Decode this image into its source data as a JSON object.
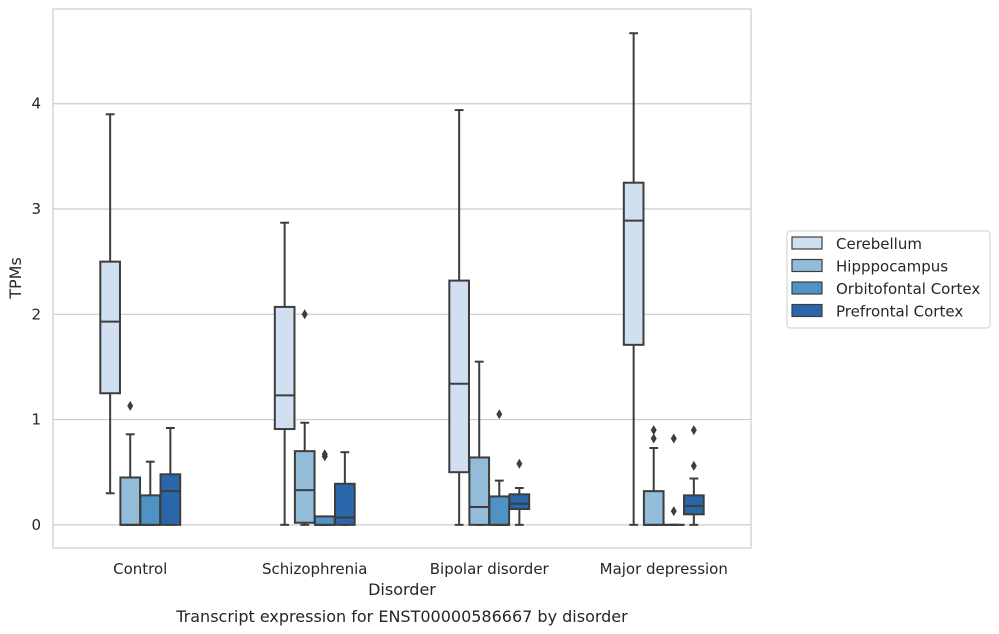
{
  "chart_data": {
    "type": "box",
    "caption": "Transcript expression for ENST00000586667 by disorder",
    "xlabel": "Disorder",
    "ylabel": "TPMs",
    "ylim": [
      -0.22,
      4.9
    ],
    "yticks": [
      0,
      1,
      2,
      3,
      4
    ],
    "grid": "horizontal",
    "legend_position": "right",
    "categories": [
      "Control",
      "Schizophrenia",
      "Bipolar disorder",
      "Major depression"
    ],
    "series": [
      {
        "name": "Cerebellum",
        "color": "#d1e0f0",
        "boxes": [
          {
            "whislo": 0.3,
            "q1": 1.25,
            "med": 1.93,
            "q3": 2.5,
            "whishi": 3.9,
            "fliers": []
          },
          {
            "whislo": 0.0,
            "q1": 0.91,
            "med": 1.23,
            "q3": 2.07,
            "whishi": 2.87,
            "fliers": []
          },
          {
            "whislo": 0.0,
            "q1": 0.5,
            "med": 1.34,
            "q3": 2.32,
            "whishi": 3.94,
            "fliers": []
          },
          {
            "whislo": 0.0,
            "q1": 1.71,
            "med": 2.89,
            "q3": 3.25,
            "whishi": 4.67,
            "fliers": []
          }
        ]
      },
      {
        "name": "Hipppocampus",
        "color": "#92bcd8",
        "boxes": [
          {
            "whislo": 0.0,
            "q1": 0.0,
            "med": 0.0,
            "q3": 0.45,
            "whishi": 0.86,
            "fliers": [
              1.13
            ]
          },
          {
            "whislo": 0.0,
            "q1": 0.02,
            "med": 0.33,
            "q3": 0.7,
            "whishi": 0.97,
            "fliers": [
              2.0
            ]
          },
          {
            "whislo": 0.0,
            "q1": 0.0,
            "med": 0.17,
            "q3": 0.64,
            "whishi": 1.55,
            "fliers": []
          },
          {
            "whislo": 0.0,
            "q1": 0.0,
            "med": 0.0,
            "q3": 0.32,
            "whishi": 0.73,
            "fliers": [
              0.82,
              0.9
            ]
          }
        ]
      },
      {
        "name": "Orbitofontal Cortex",
        "color": "#4f93c4",
        "boxes": [
          {
            "whislo": 0.0,
            "q1": 0.0,
            "med": 0.0,
            "q3": 0.28,
            "whishi": 0.6,
            "fliers": []
          },
          {
            "whislo": 0.0,
            "q1": 0.0,
            "med": 0.0,
            "q3": 0.08,
            "whishi": 0.08,
            "fliers": [
              0.65,
              0.67
            ]
          },
          {
            "whislo": 0.0,
            "q1": 0.0,
            "med": 0.0,
            "q3": 0.27,
            "whishi": 0.42,
            "fliers": [
              1.05
            ]
          },
          {
            "whislo": 0.0,
            "q1": 0.0,
            "med": 0.0,
            "q3": 0.0,
            "whishi": 0.0,
            "fliers": [
              0.13,
              0.82
            ]
          }
        ]
      },
      {
        "name": "Prefrontal Cortex",
        "color": "#2a67aa",
        "boxes": [
          {
            "whislo": 0.0,
            "q1": 0.0,
            "med": 0.32,
            "q3": 0.48,
            "whishi": 0.92,
            "fliers": []
          },
          {
            "whislo": 0.0,
            "q1": 0.0,
            "med": 0.07,
            "q3": 0.39,
            "whishi": 0.69,
            "fliers": []
          },
          {
            "whislo": 0.0,
            "q1": 0.15,
            "med": 0.2,
            "q3": 0.29,
            "whishi": 0.35,
            "fliers": [
              0.58
            ]
          },
          {
            "whislo": 0.0,
            "q1": 0.1,
            "med": 0.18,
            "q3": 0.28,
            "whishi": 0.44,
            "fliers": [
              0.56,
              0.9
            ]
          }
        ]
      }
    ]
  }
}
